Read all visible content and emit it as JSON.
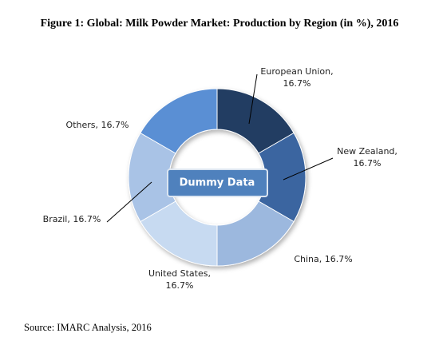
{
  "chart_data": {
    "type": "donut",
    "title": "Figure 1: Global: Milk Powder Market: Production by Region (in %), 2016",
    "values": [
      16.7,
      16.7,
      16.7,
      16.7,
      16.7,
      16.7
    ],
    "value_labels": [
      "European Union, 16.7%",
      "New Zealand, 16.7%",
      "China, 16.7%",
      "United States, 16.7%",
      "Brazil, 16.7%",
      "Others, 16.7%"
    ],
    "colors": [
      "#213d62",
      "#3a65a0",
      "#9cb8de",
      "#c7daf1",
      "#a9c3e6",
      "#5a8fd4"
    ],
    "annotation": "Dummy Data",
    "source": "Source: IMARC Analysis, 2016"
  }
}
